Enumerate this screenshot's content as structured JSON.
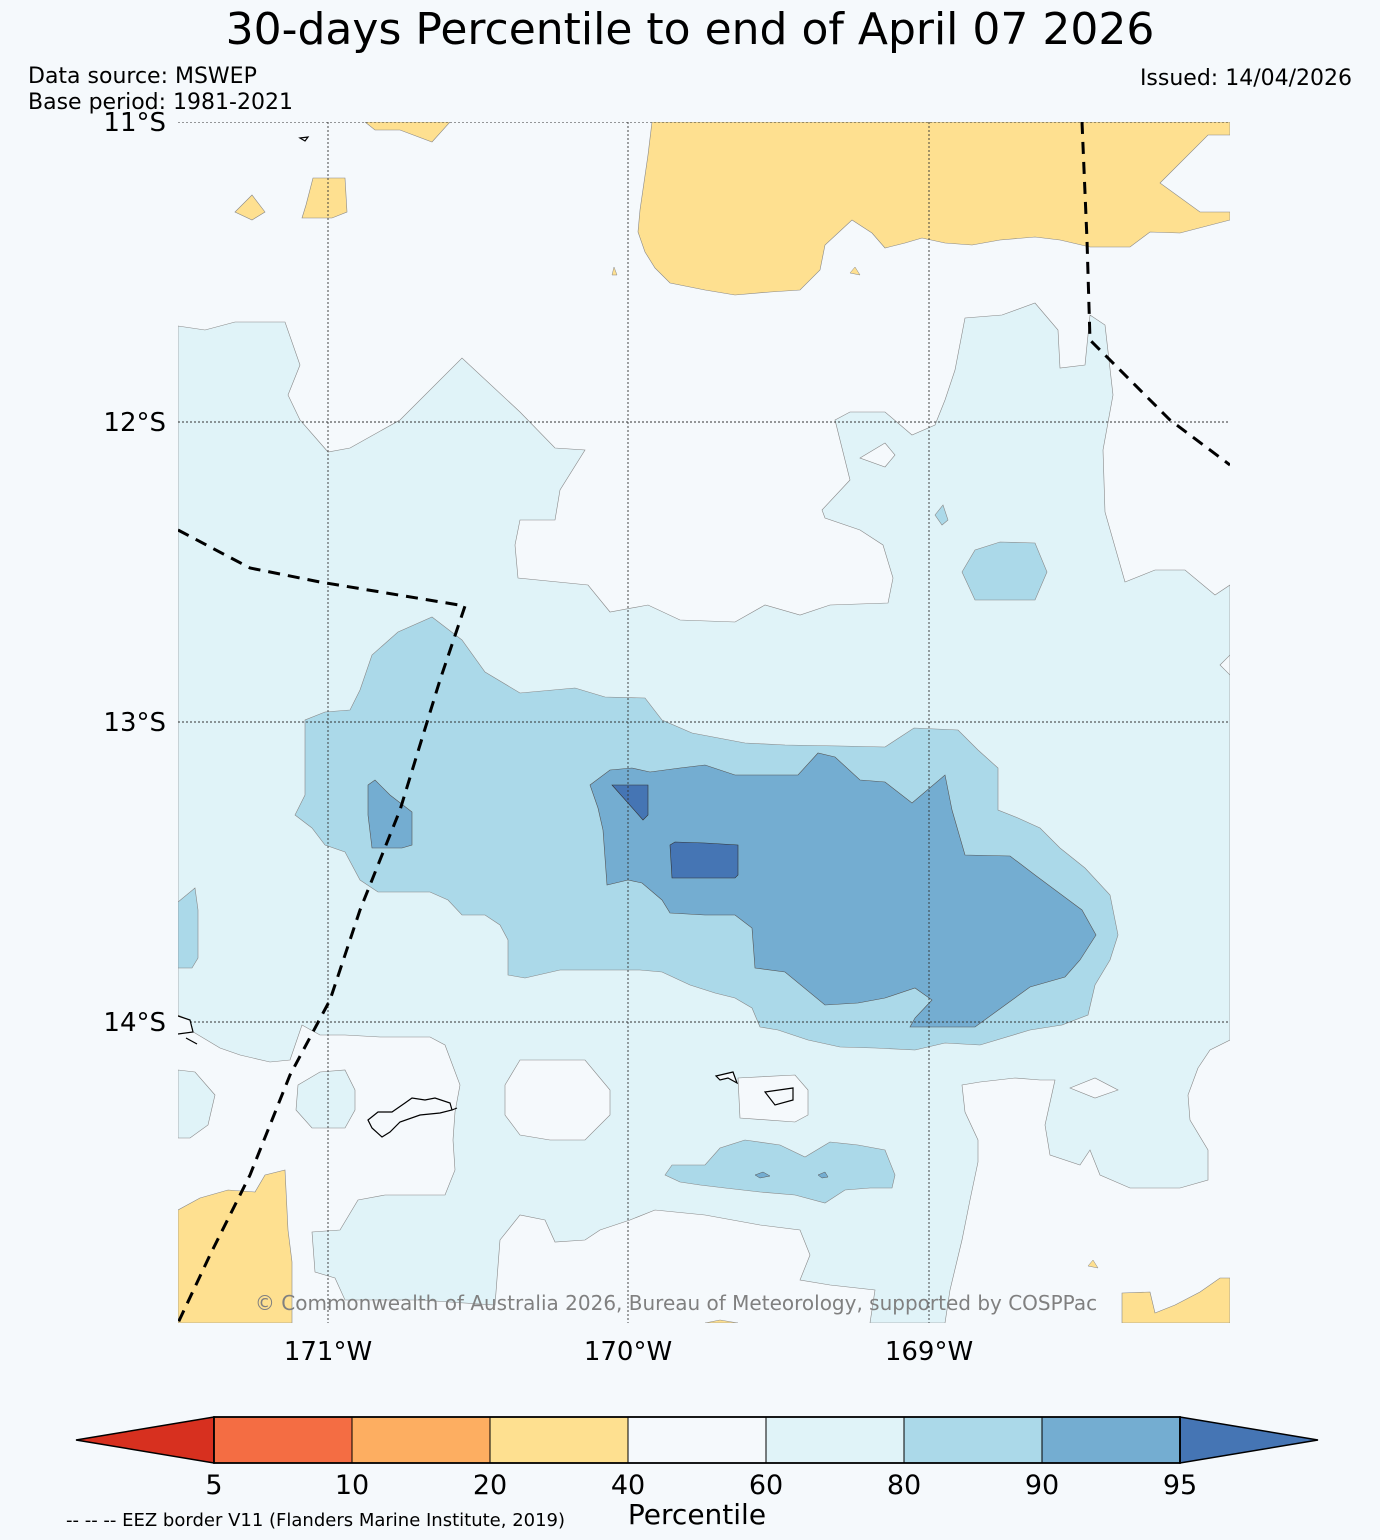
{
  "title": "30-days Percentile to end of April 07 2026",
  "data_source": "Data source: MSWEP",
  "base_period": "Base period: 1981-2021",
  "issued": "Issued: 14/04/2026",
  "copyright": "© Commonwealth of Australia 2026, Bureau of Meteorology, supported by COSPPac",
  "lat_labels": [
    "11°S",
    "12°S",
    "13°S",
    "14°S"
  ],
  "lon_labels": [
    "171°W",
    "170°W",
    "169°W"
  ],
  "colorbar": {
    "title": "Percentile",
    "ticks": [
      "5",
      "10",
      "20",
      "40",
      "60",
      "80",
      "90",
      "95"
    ],
    "colors": [
      "#d7301f",
      "#f46d43",
      "#fdae61",
      "#fee090",
      "#f5f9fc",
      "#e0f3f8",
      "#abd9e9",
      "#74add1",
      "#4575b4"
    ]
  },
  "eez_note": "-- -- -- EEZ border V11 (Flanders Marine Institute, 2019)",
  "map_colors": {
    "ocean": "#f5f9fc",
    "below40": "#fee090",
    "p60_80": "#e0f3f8",
    "p80_90": "#abd9e9",
    "p90_95": "#74add1",
    "above95": "#4575b4"
  }
}
